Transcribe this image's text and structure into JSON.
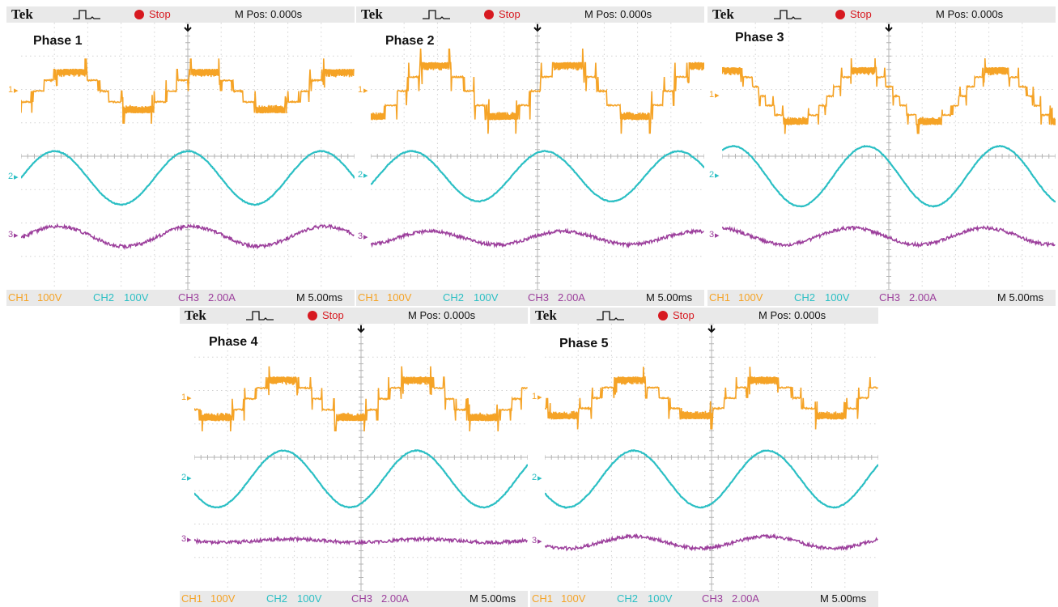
{
  "chart_data": {
    "type": "line",
    "common": {
      "brand": "Tek",
      "status": "Stop",
      "m_pos": "M Pos: 0.000s",
      "ch1_label": "CH1",
      "ch1_scale": "100V",
      "ch2_label": "CH2",
      "ch2_scale": "100V",
      "ch3_label": "CH3",
      "ch3_scale": "2.00A",
      "time_scale": "M 5.00ms",
      "marker_1": "1",
      "marker_2": "2",
      "marker_3": "3",
      "x_divisions": 10,
      "y_divisions": 8,
      "time_per_div_ms": 5,
      "colors": {
        "ch1": "#f5a326",
        "ch2": "#2bbfc4",
        "ch3": "#9c3f9c",
        "stop": "#d71920"
      }
    },
    "panels": [
      {
        "title": "Phase 1",
        "ch1": {
          "period_div": 4.0,
          "phase_deg": -45,
          "top_div": 2.6,
          "bottom_div": 1.3,
          "levels": 5
        },
        "ch2": {
          "period_div": 4.0,
          "phase_deg": 0,
          "center_div": -0.65,
          "amp_div": 0.8
        },
        "ch3": {
          "period_div": 4.0,
          "phase_deg": -10,
          "center_div": -2.4,
          "amp_div": 0.3
        }
      },
      {
        "title": "Phase 2",
        "ch1": {
          "period_div": 4.0,
          "phase_deg": -85,
          "top_div": 2.8,
          "bottom_div": 1.1,
          "levels": 5
        },
        "ch2": {
          "period_div": 4.0,
          "phase_deg": -20,
          "center_div": -0.6,
          "amp_div": 0.75
        },
        "ch3": {
          "period_div": 4.0,
          "phase_deg": -70,
          "center_div": -2.45,
          "amp_div": 0.2
        }
      },
      {
        "title": "Phase 3",
        "ch1": {
          "period_div": 4.0,
          "phase_deg": 70,
          "top_div": 2.65,
          "bottom_div": 0.95,
          "levels": 7
        },
        "ch2": {
          "period_div": 4.0,
          "phase_deg": 60,
          "center_div": -0.6,
          "amp_div": 0.9
        },
        "ch3": {
          "period_div": 4.0,
          "phase_deg": 100,
          "center_div": -2.4,
          "amp_div": 0.25
        }
      },
      {
        "title": "Phase 4",
        "ch1": {
          "period_div": 4.0,
          "phase_deg": -150,
          "top_div": 2.4,
          "bottom_div": 1.1,
          "levels": 5
        },
        "ch2": {
          "period_div": 4.0,
          "phase_deg": -150,
          "center_div": -0.65,
          "amp_div": 0.85
        },
        "ch3": {
          "period_div": 4.0,
          "phase_deg": -170,
          "center_div": -2.5,
          "amp_div": 0.05
        }
      },
      {
        "title": "Phase 5",
        "ch1": {
          "period_div": 4.0,
          "phase_deg": -140,
          "top_div": 2.4,
          "bottom_div": 1.15,
          "levels": 5
        },
        "ch2": {
          "period_div": 4.0,
          "phase_deg": -150,
          "center_div": -0.65,
          "amp_div": 0.85
        },
        "ch3": {
          "period_div": 4.0,
          "phase_deg": -150,
          "center_div": -2.55,
          "amp_div": 0.18
        }
      }
    ]
  }
}
